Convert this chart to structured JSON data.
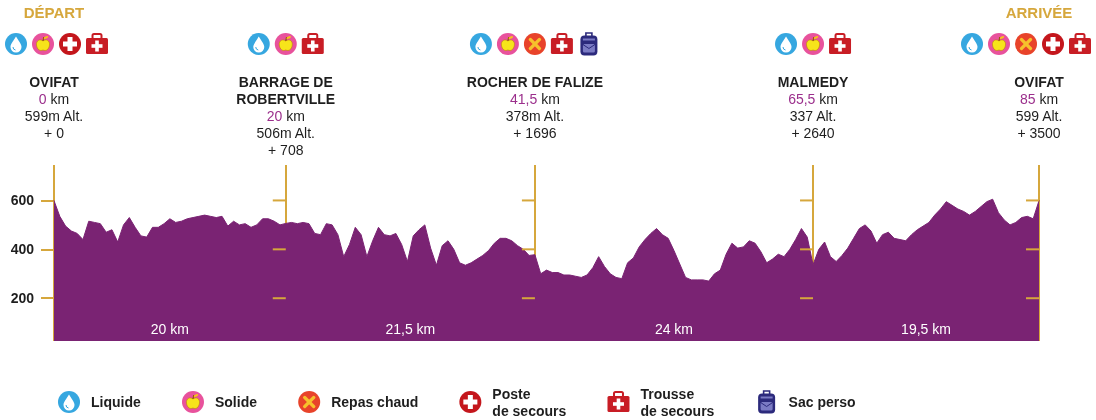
{
  "chart_data": {
    "type": "area",
    "categories": [
      "OVIFAT\n0 km\n599m Alt.\n+ 0",
      null,
      null,
      null,
      null,
      null,
      null,
      null,
      null,
      null,
      null,
      null,
      null,
      null,
      null,
      null,
      null,
      null,
      null,
      null,
      null,
      null,
      null,
      null,
      null,
      null,
      null,
      null,
      null,
      null,
      null,
      null,
      null,
      null,
      null,
      null,
      null,
      null,
      null,
      null,
      "BARRAGE DE\nROBERTVILLE\n20 km\n506m Alt.\n+ 708",
      null,
      null,
      null,
      null,
      null,
      null,
      null,
      null,
      null,
      null,
      null,
      null,
      null,
      null,
      null,
      null,
      null,
      null,
      null,
      null,
      null,
      null,
      null,
      null,
      null,
      null,
      null,
      null,
      null,
      null,
      null,
      null,
      null,
      null,
      null,
      null,
      null,
      null,
      null,
      null,
      null,
      null,
      "ROCHER DE FALIZE\n41,5 km\n378m Alt.\n+ 1696",
      null,
      null,
      null,
      null,
      null,
      null,
      null,
      null,
      null,
      null,
      null,
      null,
      null,
      null,
      null,
      null,
      null,
      null,
      null,
      null,
      null,
      null,
      null,
      null,
      null,
      null,
      null,
      null,
      null,
      null,
      null,
      null,
      null,
      null,
      null,
      null,
      null,
      null,
      null,
      null,
      null,
      null,
      null,
      null,
      null,
      null,
      null,
      "MALMEDY\n65,5 km\n337 Alt.\n+ 2640",
      null,
      null,
      null,
      null,
      null,
      null,
      null,
      null,
      null,
      null,
      null,
      null,
      null,
      null,
      null,
      null,
      null,
      null,
      null,
      null,
      null,
      null,
      null,
      null,
      null,
      null,
      null,
      null,
      null,
      null,
      null,
      null,
      null,
      null,
      null,
      null,
      null,
      null,
      "OVIFAT\n85 km\n599 Alt.\n+ 3500"
    ],
    "values": [
      599,
      535,
      495,
      475,
      465,
      440,
      515,
      510,
      505,
      470,
      480,
      430,
      500,
      530,
      490,
      455,
      450,
      490,
      490,
      505,
      525,
      510,
      515,
      525,
      530,
      535,
      540,
      535,
      530,
      535,
      495,
      515,
      500,
      505,
      490,
      500,
      525,
      525,
      515,
      500,
      506,
      510,
      505,
      510,
      505,
      465,
      460,
      505,
      500,
      460,
      370,
      420,
      490,
      460,
      370,
      435,
      490,
      460,
      455,
      465,
      420,
      350,
      455,
      480,
      500,
      405,
      335,
      415,
      435,
      400,
      345,
      335,
      345,
      360,
      375,
      395,
      425,
      445,
      445,
      435,
      415,
      400,
      375,
      378,
      300,
      315,
      305,
      305,
      295,
      295,
      290,
      285,
      295,
      325,
      370,
      330,
      300,
      285,
      280,
      345,
      365,
      410,
      440,
      465,
      485,
      460,
      445,
      395,
      340,
      285,
      275,
      275,
      275,
      270,
      300,
      315,
      380,
      425,
      405,
      410,
      435,
      425,
      390,
      345,
      360,
      380,
      370,
      400,
      440,
      485,
      450,
      337,
      400,
      430,
      370,
      350,
      375,
      405,
      445,
      485,
      500,
      475,
      425,
      460,
      470,
      445,
      440,
      435,
      460,
      480,
      495,
      510,
      540,
      565,
      595,
      580,
      565,
      555,
      540,
      555,
      575,
      595,
      605,
      550,
      520,
      500,
      510,
      530,
      535,
      525,
      599
    ],
    "color": "#7a2373",
    "ylim": [
      25,
      745
    ],
    "yticks": [
      200,
      400,
      600
    ],
    "grid": "x",
    "annotations": [
      "DÉPART",
      "ARRIVÉE",
      "20 km",
      "21,5 km",
      "24 km",
      "19,5 km",
      "Liquide",
      "Solide",
      "Repas chaud",
      "Poste\nde secours",
      "Trousse\nde secours",
      "Sac perso"
    ]
  }
}
